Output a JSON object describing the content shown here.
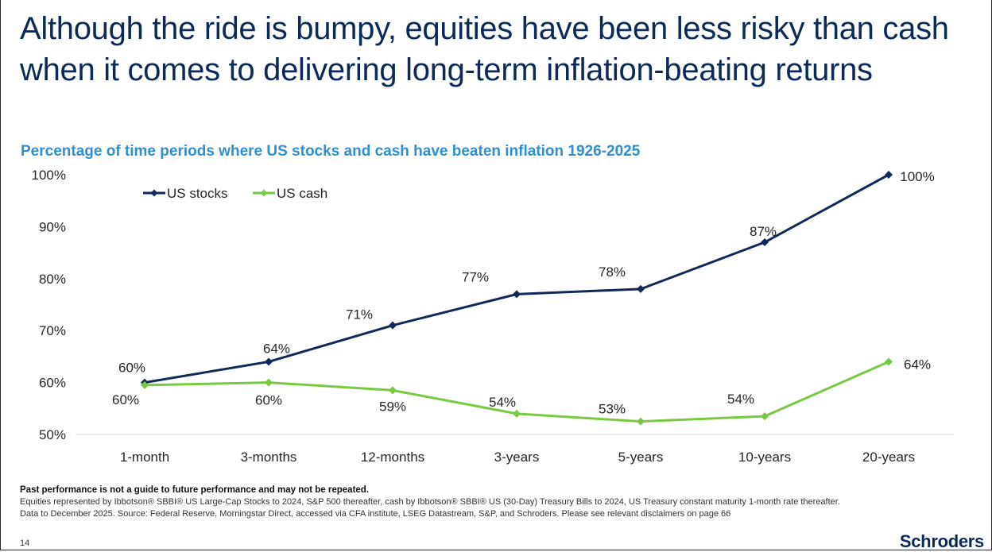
{
  "header": {
    "title": "Although the ride is bumpy, equities have been less risky than cash when it comes to delivering long-term inflation-beating returns",
    "subtitle": "Percentage of time periods where US stocks and cash have beaten inflation 1926-2025"
  },
  "chart_data": {
    "type": "line",
    "title": "Percentage of time periods where US stocks and cash have beaten inflation 1926-2025",
    "categories": [
      "1-month",
      "3-months",
      "12-months",
      "3-years",
      "5-years",
      "10-years",
      "20-years"
    ],
    "series": [
      {
        "name": "US stocks",
        "color": "#10295a",
        "values": [
          60,
          64,
          71,
          77,
          78,
          87,
          100
        ],
        "labels": [
          "60%",
          "64%",
          "71%",
          "77%",
          "78%",
          "87%",
          "100%"
        ]
      },
      {
        "name": "US cash",
        "color": "#7ac943",
        "values": [
          59.5,
          60,
          58.5,
          54,
          52.5,
          53.5,
          64
        ],
        "labels": [
          "60%",
          "60%",
          "59%",
          "54%",
          "53%",
          "54%",
          "64%"
        ]
      }
    ],
    "y_ticks": [
      "50%",
      "60%",
      "70%",
      "80%",
      "90%",
      "100%"
    ],
    "ylim": [
      50,
      100
    ],
    "legend_position": "top-left",
    "grid": false
  },
  "footer": {
    "disclaimer": "Past performance is not a guide to future performance and may not be repeated.",
    "note1": "Equities represented by Ibbotson® SBBI® US Large-Cap Stocks to 2024, S&P 500 thereafter, cash by Ibbotson® SBBI® US (30-Day) Treasury Bills to 2024, US Treasury constant maturity 1-month rate thereafter.",
    "note2": "Data to December 2025. Source: Federal Reserve, Morningstar Direct, accessed via CFA institute, LSEG Datastream, S&P, and Schroders. Please see relevant disclaimers on page 66",
    "page_number": "14",
    "brand": "Schroders"
  }
}
